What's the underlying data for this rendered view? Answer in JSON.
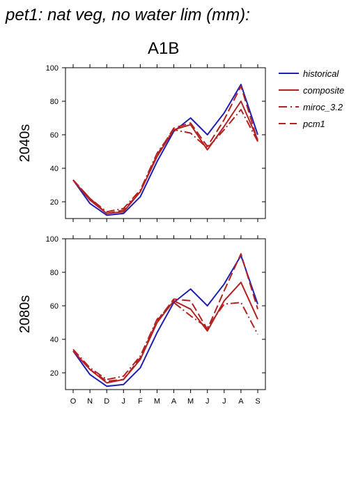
{
  "title": "pet1: nat veg, no water lim (mm):",
  "scenario": "A1B",
  "chart_data": [
    {
      "type": "line",
      "ylabel": "2040s",
      "ylim": [
        10,
        100
      ],
      "yticks": [
        20,
        40,
        60,
        80,
        100
      ],
      "categories": [
        "O",
        "N",
        "D",
        "J",
        "F",
        "M",
        "A",
        "M",
        "J",
        "J",
        "A",
        "S"
      ],
      "series": [
        {
          "name": "historical",
          "color": "#1f1fb4",
          "dash": "solid",
          "values": [
            33,
            19,
            12,
            13,
            23,
            44,
            62,
            70,
            60,
            73,
            90,
            60
          ]
        },
        {
          "name": "composite",
          "color": "#b22222",
          "dash": "solid",
          "values": [
            33,
            21,
            13,
            14,
            26,
            47,
            63,
            66,
            51,
            65,
            80,
            57
          ]
        },
        {
          "name": "miroc_3.2",
          "color": "#b22222",
          "dash": "dashdot",
          "values": [
            33,
            22,
            14,
            16,
            27,
            49,
            63,
            61,
            52,
            63,
            75,
            56
          ]
        },
        {
          "name": "pcm1",
          "color": "#b22222",
          "dash": "dash",
          "values": [
            33,
            22,
            13,
            15,
            26,
            48,
            64,
            67,
            53,
            69,
            89,
            56
          ]
        }
      ]
    },
    {
      "type": "line",
      "ylabel": "2080s",
      "ylim": [
        10,
        100
      ],
      "yticks": [
        20,
        40,
        60,
        80,
        100
      ],
      "categories": [
        "O",
        "N",
        "D",
        "J",
        "F",
        "M",
        "A",
        "M",
        "J",
        "J",
        "A",
        "S"
      ],
      "series": [
        {
          "name": "historical",
          "color": "#1f1fb4",
          "dash": "solid",
          "values": [
            33,
            19,
            12,
            13,
            23,
            44,
            62,
            70,
            60,
            73,
            90,
            61
          ]
        },
        {
          "name": "composite",
          "color": "#b22222",
          "dash": "solid",
          "values": [
            33,
            22,
            14,
            16,
            28,
            50,
            63,
            58,
            45,
            63,
            74,
            52
          ]
        },
        {
          "name": "miroc_3.2",
          "color": "#b22222",
          "dash": "dashdot",
          "values": [
            34,
            23,
            16,
            18,
            30,
            52,
            62,
            54,
            47,
            61,
            62,
            43
          ]
        },
        {
          "name": "pcm1",
          "color": "#b22222",
          "dash": "dash",
          "values": [
            33,
            22,
            15,
            16,
            29,
            51,
            64,
            63,
            46,
            69,
            91,
            58
          ]
        }
      ]
    }
  ],
  "legend": [
    {
      "name": "historical",
      "color": "#1f1fb4",
      "dash": "solid"
    },
    {
      "name": "composite",
      "color": "#b22222",
      "dash": "solid"
    },
    {
      "name": "miroc_3.2",
      "color": "#b22222",
      "dash": "dashdot"
    },
    {
      "name": "pcm1",
      "color": "#b22222",
      "dash": "dash"
    }
  ]
}
